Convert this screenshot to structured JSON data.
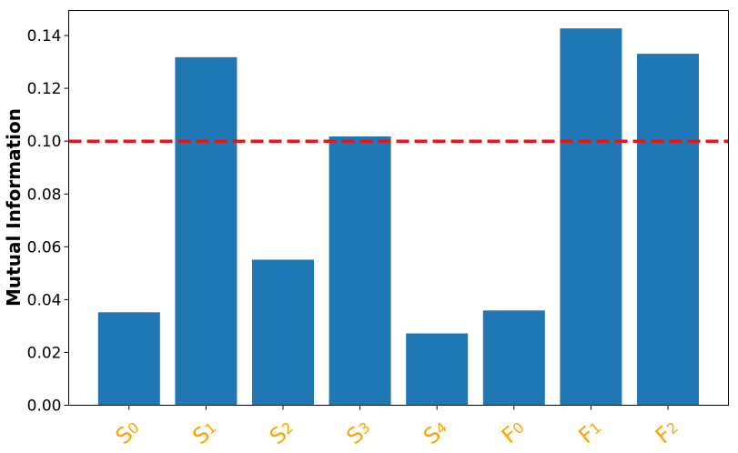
{
  "chart_data": {
    "type": "bar",
    "categories": [
      {
        "base": "S",
        "sub": "0"
      },
      {
        "base": "S",
        "sub": "1"
      },
      {
        "base": "S",
        "sub": "2"
      },
      {
        "base": "S",
        "sub": "3"
      },
      {
        "base": "S",
        "sub": "4"
      },
      {
        "base": "F",
        "sub": "0"
      },
      {
        "base": "F",
        "sub": "1"
      },
      {
        "base": "F",
        "sub": "2"
      }
    ],
    "values": [
      0.0352,
      0.1318,
      0.0551,
      0.1018,
      0.0272,
      0.0359,
      0.1427,
      0.1331
    ],
    "ylabel": "Mutual Information",
    "xlabel": "",
    "ylim": [
      0,
      0.1495
    ],
    "yticks": [
      "0.00",
      "0.02",
      "0.04",
      "0.06",
      "0.08",
      "0.10",
      "0.12",
      "0.14"
    ],
    "threshold": 0.1,
    "colors": {
      "bar": "#1f77b4",
      "threshold": "#e8141a",
      "category_label": "#FFA500"
    },
    "grid": false,
    "legend": "none"
  }
}
